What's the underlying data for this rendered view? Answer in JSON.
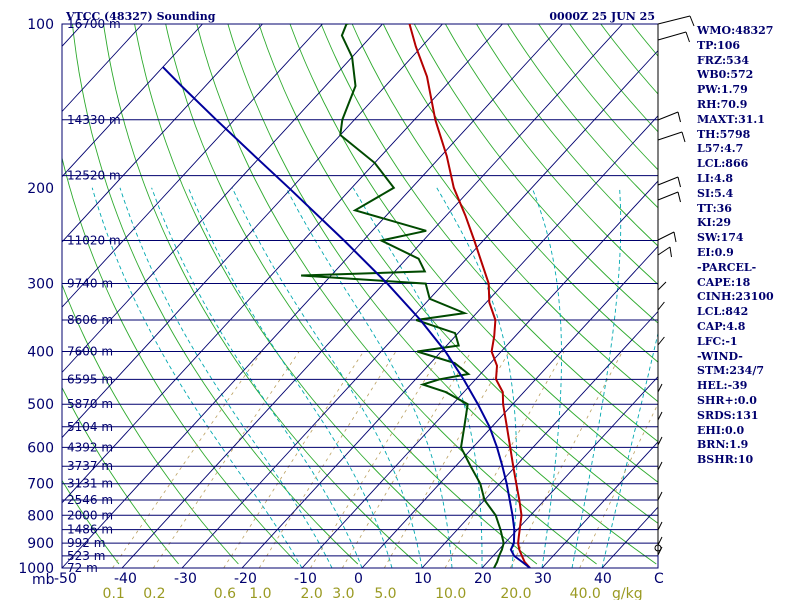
{
  "header": {
    "title_left": "VTCC (48327) Sounding",
    "title_right": "0000Z 25 JUN 25"
  },
  "chart_data": {
    "type": "line",
    "title": "VTCC (48327) Sounding",
    "pressure_unit": "mb",
    "mixing_unit": "g/kg",
    "pressure_ticks": [
      100,
      200,
      300,
      400,
      500,
      600,
      700,
      800,
      900,
      1000
    ],
    "height_levels": [
      {
        "p": 100,
        "label": "16700 m"
      },
      {
        "p": 150,
        "label": "14330 m"
      },
      {
        "p": 190,
        "label": "12520 m"
      },
      {
        "p": 250,
        "label": "11020 m"
      },
      {
        "p": 300,
        "label": "9740 m"
      },
      {
        "p": 350,
        "label": "8606 m"
      },
      {
        "p": 400,
        "label": "7600 m"
      },
      {
        "p": 450,
        "label": "6595 m"
      },
      {
        "p": 500,
        "label": "5870 m"
      },
      {
        "p": 550,
        "label": "5104 m"
      },
      {
        "p": 600,
        "label": "4392 m"
      },
      {
        "p": 650,
        "label": "3737 m"
      },
      {
        "p": 700,
        "label": "3131 m"
      },
      {
        "p": 750,
        "label": "2546 m"
      },
      {
        "p": 800,
        "label": "2000 m"
      },
      {
        "p": 850,
        "label": "1486 m"
      },
      {
        "p": 900,
        "label": "992 m"
      },
      {
        "p": 950,
        "label": "523 m"
      },
      {
        "p": 1000,
        "label": "72 m"
      }
    ],
    "temp_ticks": [
      -50,
      -40,
      -30,
      -20,
      -10,
      0,
      10,
      20,
      30,
      40
    ],
    "temp_tick_labels": [
      "-50",
      "-40",
      "-30",
      "-20",
      "-10",
      "0",
      "10",
      "20",
      "30",
      "40"
    ],
    "mixing_ratio_labels": [
      "0.1",
      "0.2",
      "0.6",
      "1.0",
      "2.0",
      "3.0",
      "5.0",
      "10.0",
      "20.0",
      "40.0"
    ],
    "series": [
      {
        "values": [
          [
            1000,
            28.0
          ],
          [
            975,
            26.2
          ],
          [
            950,
            24.8
          ],
          [
            925,
            23.4
          ],
          [
            900,
            22.2
          ],
          [
            875,
            21.3
          ],
          [
            850,
            20.4
          ],
          [
            800,
            18.5
          ],
          [
            750,
            15.8
          ],
          [
            700,
            12.8
          ],
          [
            650,
            9.6
          ],
          [
            600,
            6.2
          ],
          [
            550,
            2.5
          ],
          [
            500,
            -1.6
          ],
          [
            475,
            -3.5
          ],
          [
            450,
            -6.6
          ],
          [
            425,
            -8.5
          ],
          [
            400,
            -11.6
          ],
          [
            375,
            -13.5
          ],
          [
            350,
            -15.8
          ],
          [
            325,
            -19.5
          ],
          [
            300,
            -22.5
          ],
          [
            275,
            -26.8
          ],
          [
            250,
            -31.5
          ],
          [
            225,
            -36.8
          ],
          [
            200,
            -43.0
          ],
          [
            175,
            -49.0
          ],
          [
            150,
            -56.5
          ],
          [
            125,
            -64.5
          ],
          [
            110,
            -71.0
          ],
          [
            100,
            -75.5
          ],
          [
            97,
            -73.0
          ]
        ],
        "color": "#b40000"
      },
      {
        "values": [
          [
            1000,
            22.0
          ],
          [
            975,
            21.6
          ],
          [
            950,
            21.0
          ],
          [
            925,
            20.5
          ],
          [
            900,
            19.8
          ],
          [
            850,
            17.2
          ],
          [
            800,
            14.2
          ],
          [
            750,
            10.0
          ],
          [
            700,
            6.8
          ],
          [
            650,
            2.5
          ],
          [
            600,
            -2.0
          ],
          [
            550,
            -4.6
          ],
          [
            500,
            -7.5
          ],
          [
            475,
            -13.0
          ],
          [
            460,
            -18.0
          ],
          [
            450,
            -16.0
          ],
          [
            440,
            -12.0
          ],
          [
            420,
            -16.0
          ],
          [
            400,
            -24.0
          ],
          [
            390,
            -18.0
          ],
          [
            370,
            -20.5
          ],
          [
            350,
            -29.0
          ],
          [
            340,
            -22.0
          ],
          [
            320,
            -30.0
          ],
          [
            300,
            -33.0
          ],
          [
            290,
            -55.0
          ],
          [
            285,
            -35.0
          ],
          [
            270,
            -38.0
          ],
          [
            250,
            -47.0
          ],
          [
            240,
            -41.0
          ],
          [
            220,
            -56.0
          ],
          [
            200,
            -53.0
          ],
          [
            180,
            -60.0
          ],
          [
            160,
            -70.0
          ],
          [
            150,
            -72.0
          ],
          [
            130,
            -75.0
          ],
          [
            115,
            -80.0
          ],
          [
            105,
            -85.0
          ],
          [
            100,
            -86.0
          ],
          [
            98,
            -83.0
          ]
        ],
        "color": "#004a00"
      },
      {
        "values": [
          [
            1000,
            28.0
          ],
          [
            975,
            25.8
          ],
          [
            950,
            23.5
          ],
          [
            925,
            22.0
          ],
          [
            900,
            21.5
          ],
          [
            850,
            19.5
          ],
          [
            800,
            17.0
          ],
          [
            750,
            14.2
          ],
          [
            700,
            11.2
          ],
          [
            650,
            7.8
          ],
          [
            600,
            4.0
          ],
          [
            550,
            -0.4
          ],
          [
            500,
            -5.8
          ],
          [
            450,
            -12.0
          ],
          [
            400,
            -19.3
          ],
          [
            350,
            -28.3
          ],
          [
            300,
            -39.4
          ],
          [
            250,
            -53.2
          ],
          [
            200,
            -70.5
          ],
          [
            175,
            -81.0
          ],
          [
            150,
            -93.0
          ],
          [
            130,
            -104.0
          ],
          [
            120,
            -110.0
          ]
        ],
        "color": "#00009c"
      }
    ]
  },
  "indices": [
    "WMO:48327",
    "TP:106",
    "FRZ:534",
    "WB0:572",
    "PW:1.79",
    "RH:70.9",
    "MAXT:31.1",
    "TH:5798",
    "L57:4.7",
    "LCL:866",
    "LI:4.8",
    "SI:5.4",
    "TT:36",
    "KI:29",
    "SW:174",
    "EI:0.9",
    "-PARCEL-",
    "CAPE:18",
    "CINH:23100",
    "LCL:842",
    "CAP:4.8",
    "LFC:-1",
    "-WIND-",
    "STM:234/7",
    "HEL:-39",
    "SHR+:0.0",
    "SRDS:131",
    "EHI:0.0",
    "BRN:1.9",
    "BSHR:10"
  ],
  "colors": {
    "isobar": "#00006e",
    "isotherm": "#00006e",
    "dry_adiabat": "#2eaa2e",
    "moist_adiabat": "#00a8b0",
    "mixing_ratio": "#bba060"
  }
}
